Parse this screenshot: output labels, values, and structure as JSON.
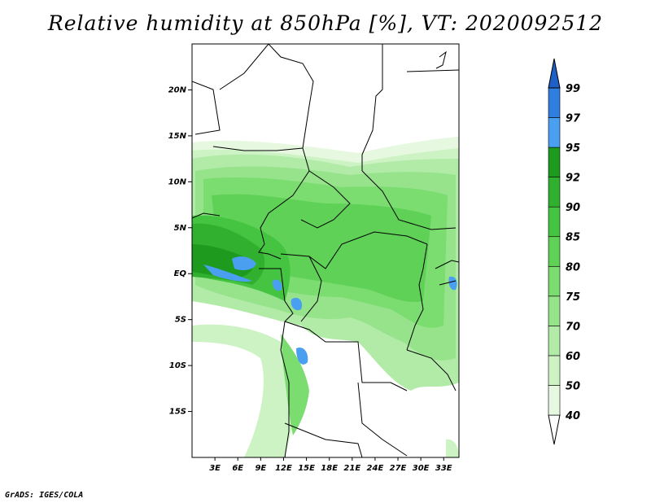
{
  "title": "Relative humidity at 850hPa [%], VT: 2020092512",
  "footer": "GrADS: IGES/COLA",
  "map": {
    "lon_range": [
      0,
      35
    ],
    "lat_range": [
      -20,
      25
    ],
    "lat_ticks": [
      {
        "value": 20,
        "label": "20N"
      },
      {
        "value": 15,
        "label": "15N"
      },
      {
        "value": 10,
        "label": "10N"
      },
      {
        "value": 5,
        "label": "5N"
      },
      {
        "value": 0,
        "label": "EQ"
      },
      {
        "value": -5,
        "label": "5S"
      },
      {
        "value": -10,
        "label": "10S"
      },
      {
        "value": -15,
        "label": "15S"
      }
    ],
    "lon_ticks": [
      {
        "value": 3,
        "label": "3E"
      },
      {
        "value": 6,
        "label": "6E"
      },
      {
        "value": 9,
        "label": "9E"
      },
      {
        "value": 12,
        "label": "12E"
      },
      {
        "value": 15,
        "label": "15E"
      },
      {
        "value": 18,
        "label": "18E"
      },
      {
        "value": 21,
        "label": "21E"
      },
      {
        "value": 24,
        "label": "24E"
      },
      {
        "value": 27,
        "label": "27E"
      },
      {
        "value": 30,
        "label": "30E"
      },
      {
        "value": 33,
        "label": "33E"
      }
    ]
  },
  "colorbar": {
    "levels": [
      {
        "label": "40",
        "color": "#e6f8e0"
      },
      {
        "label": "50",
        "color": "#cdf2c4"
      },
      {
        "label": "60",
        "color": "#b2eba8"
      },
      {
        "label": "70",
        "color": "#96e38b"
      },
      {
        "label": "75",
        "color": "#7bdc70"
      },
      {
        "label": "80",
        "color": "#5fd157"
      },
      {
        "label": "85",
        "color": "#45c441"
      },
      {
        "label": "90",
        "color": "#30b02e"
      },
      {
        "label": "92",
        "color": "#1e9a1e"
      },
      {
        "label": "95",
        "color": "#4b9ff0"
      },
      {
        "label": "97",
        "color": "#2f7ee0"
      },
      {
        "label": "99",
        "color": "#1f5fc8"
      }
    ],
    "below_color": "#ffffff"
  }
}
